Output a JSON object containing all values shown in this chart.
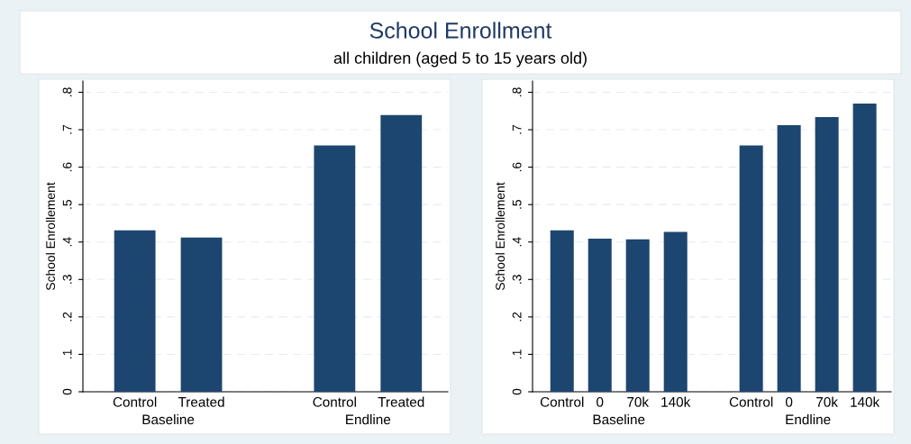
{
  "chart_data": [
    {
      "type": "bar",
      "title": "School Enrollment",
      "subtitle": "all children (aged 5 to 15 years old)",
      "ylabel": "School Enrollement",
      "categories": [
        "Control",
        "Treated",
        null,
        "Control",
        "Treated"
      ],
      "values": [
        0.431,
        0.412,
        null,
        0.658,
        0.739
      ],
      "color": "#1c4670",
      "annotations": [
        "Baseline",
        "Endline"
      ],
      "ylim": [
        0,
        0.83
      ],
      "yticks": [
        0,
        {
          "value": 0.1,
          "label": ".1"
        },
        {
          "value": 0.2,
          "label": ".2"
        },
        {
          "value": 0.3,
          "label": ".3"
        },
        {
          "value": 0.4,
          "label": ".4"
        },
        {
          "value": 0.5,
          "label": ".5"
        },
        {
          "value": 0.6,
          "label": ".6"
        },
        {
          "value": 0.7,
          "label": ".7"
        },
        {
          "value": 0.8,
          "label": ".8"
        }
      ],
      "grid": "y"
    },
    {
      "type": "bar",
      "ylabel": "School Enrollement",
      "categories": [
        "Control",
        "0",
        "70k",
        "140k",
        null,
        "Control",
        "0",
        "70k",
        "140k"
      ],
      "values": [
        0.431,
        0.409,
        0.407,
        0.427,
        null,
        0.658,
        0.712,
        0.734,
        0.77
      ],
      "color": "#1c4670",
      "annotations": [
        "Baseline",
        "Endline"
      ],
      "ylim": [
        0,
        0.83
      ],
      "yticks": [
        0,
        {
          "value": 0.1,
          "label": ".1"
        },
        {
          "value": 0.2,
          "label": ".2"
        },
        {
          "value": 0.3,
          "label": ".3"
        },
        {
          "value": 0.4,
          "label": ".4"
        },
        {
          "value": 0.5,
          "label": ".5"
        },
        {
          "value": 0.6,
          "label": ".6"
        },
        {
          "value": 0.7,
          "label": ".7"
        },
        {
          "value": 0.8,
          "label": ".8"
        }
      ],
      "grid": "y"
    }
  ]
}
